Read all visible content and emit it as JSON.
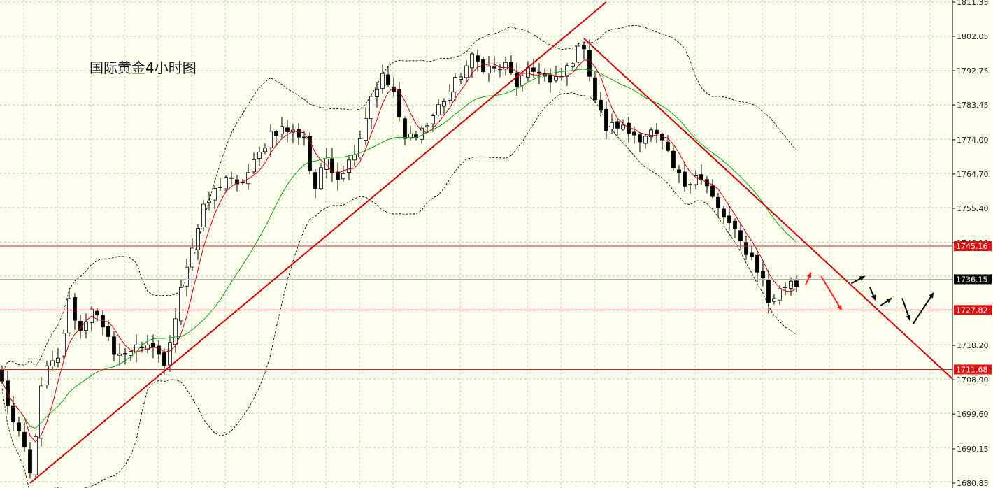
{
  "chart_data": {
    "type": "candlestick",
    "title": "国际黄金4小时图",
    "ylim": [
      1680.85,
      1811.35
    ],
    "y_ticks": [
      "1811.35",
      "1802.05",
      "1792.75",
      "1783.45",
      "1774.00",
      "1764.70",
      "1755.40",
      "1746.10",
      "1736.15",
      "1727.82",
      "1718.20",
      "1711.68",
      "1708.90",
      "1699.60",
      "1690.15",
      "1680.85"
    ],
    "current_price": "1736.15",
    "horizontal_levels": [
      {
        "value": 1745.16,
        "label": "1745.16"
      },
      {
        "value": 1727.82,
        "label": "1727.82"
      },
      {
        "value": 1711.68,
        "label": "1711.68"
      }
    ],
    "grid": true,
    "bar_count": 143,
    "anchors": [
      [
        0,
        1708
      ],
      [
        2,
        1697
      ],
      [
        4,
        1690
      ],
      [
        5,
        1683
      ],
      [
        7,
        1706
      ],
      [
        8,
        1712
      ],
      [
        10,
        1714
      ],
      [
        12,
        1730
      ],
      [
        14,
        1722
      ],
      [
        16,
        1729
      ],
      [
        18,
        1722
      ],
      [
        20,
        1717
      ],
      [
        22,
        1715
      ],
      [
        24,
        1719
      ],
      [
        26,
        1717
      ],
      [
        28,
        1716
      ],
      [
        29,
        1713
      ],
      [
        30,
        1718
      ],
      [
        32,
        1735
      ],
      [
        34,
        1745
      ],
      [
        36,
        1755
      ],
      [
        38,
        1760
      ],
      [
        40,
        1764
      ],
      [
        42,
        1761
      ],
      [
        44,
        1765
      ],
      [
        46,
        1770
      ],
      [
        48,
        1776
      ],
      [
        50,
        1777
      ],
      [
        52,
        1776
      ],
      [
        54,
        1775
      ],
      [
        55,
        1766
      ],
      [
        56,
        1761
      ],
      [
        58,
        1769
      ],
      [
        60,
        1764
      ],
      [
        62,
        1768
      ],
      [
        64,
        1775
      ],
      [
        66,
        1786
      ],
      [
        68,
        1791
      ],
      [
        70,
        1787
      ],
      [
        71,
        1779
      ],
      [
        72,
        1774
      ],
      [
        74,
        1776
      ],
      [
        76,
        1778
      ],
      [
        78,
        1783
      ],
      [
        80,
        1787
      ],
      [
        82,
        1792
      ],
      [
        84,
        1796
      ],
      [
        86,
        1794
      ],
      [
        88,
        1793
      ],
      [
        90,
        1794
      ],
      [
        92,
        1789
      ],
      [
        94,
        1792
      ],
      [
        96,
        1793
      ],
      [
        98,
        1789
      ],
      [
        100,
        1791
      ],
      [
        102,
        1796
      ],
      [
        104,
        1800
      ],
      [
        105,
        1792
      ],
      [
        106,
        1785
      ],
      [
        108,
        1777
      ],
      [
        110,
        1778
      ],
      [
        112,
        1776
      ],
      [
        114,
        1775
      ],
      [
        116,
        1776
      ],
      [
        118,
        1773
      ],
      [
        120,
        1766
      ],
      [
        122,
        1762
      ],
      [
        124,
        1765
      ],
      [
        126,
        1761
      ],
      [
        128,
        1755
      ],
      [
        130,
        1751
      ],
      [
        132,
        1746
      ],
      [
        134,
        1742
      ],
      [
        136,
        1736
      ],
      [
        137,
        1730
      ],
      [
        139,
        1733
      ],
      [
        141,
        1736
      ],
      [
        142,
        1735
      ]
    ],
    "ma_fast_color": "#cc0000",
    "ma_slow_color": "#00aa00",
    "band_color": "#000000",
    "trendline_color": "#cc0000",
    "up_color": "#ffffff",
    "down_color": "#000000",
    "background_color": "#fffff0",
    "grid_color": "#c0c0c0",
    "trendlines": [
      {
        "name": "support-trendline",
        "start": [
          5,
          1680.85
        ],
        "end": [
          108,
          1811.35
        ]
      },
      {
        "name": "resistance-trendline",
        "start": [
          104,
          1801.5
        ],
        "end": [
          170,
          1709.0
        ]
      }
    ],
    "forecast_arrows": [
      {
        "name": "forecast-arrow-red-up",
        "color": "#ff2020",
        "from": [
          143.6,
          1734.5
        ],
        "to": [
          144.6,
          1738.0
        ]
      },
      {
        "name": "forecast-arrow-red-down",
        "color": "#ff2020",
        "from": [
          146.4,
          1737.0
        ],
        "to": [
          150.1,
          1727.7
        ]
      },
      {
        "name": "forecast-arrow-black-1",
        "color": "#000000",
        "from": [
          151.8,
          1735.0
        ],
        "to": [
          154.2,
          1737.0
        ]
      },
      {
        "name": "forecast-arrow-black-2",
        "color": "#000000",
        "from": [
          155.1,
          1734.0
        ],
        "to": [
          156.1,
          1730.5
        ]
      },
      {
        "name": "forecast-arrow-black-3",
        "color": "#000000",
        "from": [
          157.0,
          1729.0
        ],
        "to": [
          159.0,
          1731.0
        ]
      },
      {
        "name": "forecast-arrow-black-4",
        "color": "#000000",
        "from": [
          160.9,
          1731.0
        ],
        "to": [
          162.3,
          1725.0
        ]
      },
      {
        "name": "forecast-arrow-black-5",
        "color": "#000000",
        "from": [
          162.8,
          1724.0
        ],
        "to": [
          166.5,
          1732.5
        ]
      }
    ]
  }
}
